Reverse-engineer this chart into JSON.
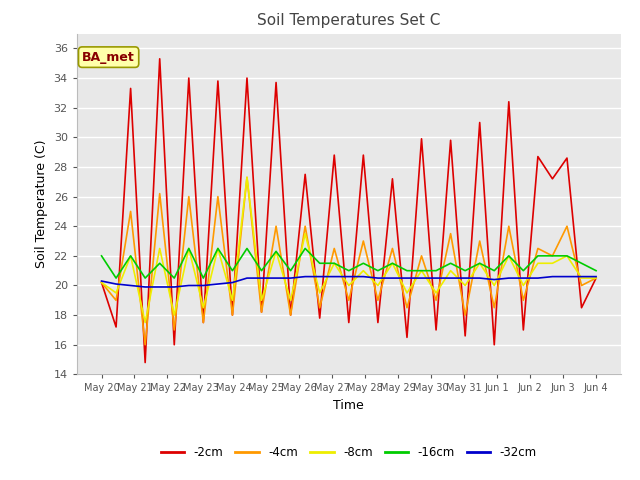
{
  "title": "Soil Temperatures Set C",
  "xlabel": "Time",
  "ylabel": "Soil Temperature (C)",
  "ylim": [
    14,
    37
  ],
  "yticks": [
    14,
    16,
    18,
    20,
    22,
    24,
    26,
    28,
    30,
    32,
    34,
    36
  ],
  "fig_bg_color": "#ffffff",
  "plot_bg_color": "#e8e8e8",
  "legend_labels": [
    "-2cm",
    "-4cm",
    "-8cm",
    "-16cm",
    "-32cm"
  ],
  "legend_colors": [
    "#dd0000",
    "#ff9900",
    "#eeee00",
    "#00cc00",
    "#0000cc"
  ],
  "annotation_text": "BA_met",
  "annotation_box_color": "#ffffaa",
  "annotation_text_color": "#880000",
  "annotation_border_color": "#999900",
  "x_tick_labels": [
    "May 20",
    "May 21",
    "May 22",
    "May 23",
    "May 24",
    "May 25",
    "May 26",
    "May 27",
    "May 28",
    "May 29",
    "May 30",
    "May 31",
    "Jun 1",
    "Jun 2",
    "Jun 3",
    "Jun 4"
  ],
  "series": {
    "d2cm": [
      20.2,
      17.2,
      33.3,
      14.8,
      35.3,
      16.0,
      34.0,
      17.5,
      33.8,
      18.0,
      34.0,
      18.2,
      33.7,
      18.0,
      27.5,
      17.8,
      28.8,
      17.5,
      28.8,
      17.5,
      27.2,
      16.5,
      29.9,
      17.0,
      29.8,
      16.6,
      31.0,
      16.0,
      32.4,
      17.0,
      28.7,
      27.2,
      28.6,
      18.5,
      20.5
    ],
    "d4cm": [
      20.2,
      19.0,
      25.0,
      16.0,
      26.2,
      17.0,
      26.0,
      17.5,
      26.0,
      18.0,
      27.3,
      18.2,
      24.0,
      18.0,
      24.0,
      18.5,
      22.5,
      19.0,
      23.0,
      19.0,
      22.5,
      18.5,
      22.0,
      19.0,
      23.5,
      18.0,
      23.0,
      18.5,
      24.0,
      19.0,
      22.5,
      22.0,
      24.0,
      20.0,
      20.5
    ],
    "d8cm": [
      20.2,
      19.5,
      22.0,
      17.5,
      22.5,
      18.0,
      22.5,
      18.5,
      22.5,
      19.0,
      27.3,
      19.0,
      22.3,
      19.0,
      23.5,
      19.5,
      21.5,
      20.0,
      21.0,
      20.0,
      21.5,
      19.5,
      21.0,
      19.5,
      21.0,
      20.0,
      21.5,
      20.0,
      22.0,
      20.0,
      21.5,
      21.5,
      22.0,
      20.5,
      20.5
    ],
    "d16cm": [
      22.0,
      20.5,
      22.0,
      20.5,
      21.5,
      20.5,
      22.5,
      20.5,
      22.5,
      21.0,
      22.5,
      21.0,
      22.3,
      21.0,
      22.5,
      21.5,
      21.5,
      21.0,
      21.5,
      21.0,
      21.5,
      21.0,
      21.0,
      21.0,
      21.5,
      21.0,
      21.5,
      21.0,
      22.0,
      21.0,
      22.0,
      22.0,
      22.0,
      21.5,
      21.0
    ],
    "d32cm": [
      20.3,
      20.1,
      20.0,
      19.9,
      19.9,
      19.9,
      20.0,
      20.0,
      20.1,
      20.2,
      20.5,
      20.5,
      20.5,
      20.5,
      20.6,
      20.6,
      20.6,
      20.6,
      20.6,
      20.5,
      20.5,
      20.5,
      20.5,
      20.5,
      20.5,
      20.5,
      20.5,
      20.4,
      20.5,
      20.5,
      20.5,
      20.6,
      20.6,
      20.6,
      20.6
    ]
  }
}
